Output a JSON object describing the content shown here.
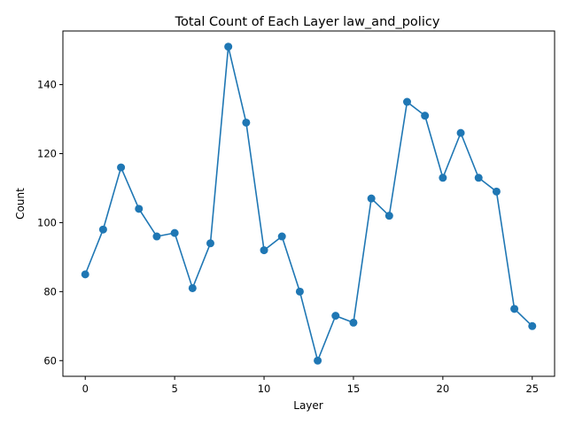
{
  "chart_data": {
    "type": "line",
    "title": "Total Count of Each Layer law_and_policy",
    "xlabel": "Layer",
    "ylabel": "Count",
    "x": [
      0,
      1,
      2,
      3,
      4,
      5,
      6,
      7,
      8,
      9,
      10,
      11,
      12,
      13,
      14,
      15,
      16,
      17,
      18,
      19,
      20,
      21,
      22,
      23,
      24,
      25
    ],
    "series": [
      {
        "values": [
          85,
          98,
          116,
          104,
          96,
          97,
          81,
          94,
          151,
          129,
          92,
          96,
          80,
          60,
          73,
          71,
          107,
          102,
          135,
          131,
          113,
          126,
          113,
          109,
          75,
          70
        ],
        "color": "#1f77b4"
      }
    ],
    "xticks": [
      0,
      5,
      10,
      15,
      20,
      25
    ],
    "yticks": [
      60,
      80,
      100,
      120,
      140
    ],
    "xlim": [
      -1.25,
      26.25
    ],
    "ylim": [
      55.45,
      155.55
    ],
    "grid": false,
    "marker": "circle"
  }
}
